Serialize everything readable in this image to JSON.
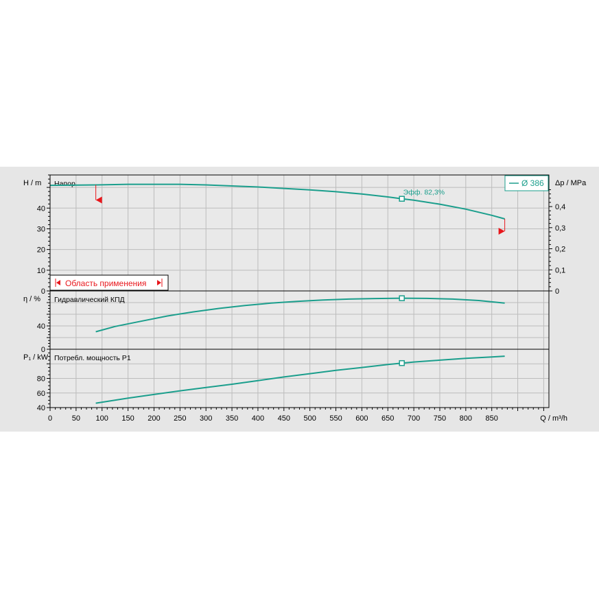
{
  "colors": {
    "background": "#e6e6e6",
    "plot_bg": "#e9e9e9",
    "grid": "#bcbcbc",
    "curve": "#1a9e8c",
    "marker_red": "#e8161b",
    "axis": "#000000"
  },
  "legend": {
    "label": "Ø 386",
    "placement": "top-right"
  },
  "range_label": "Область применения",
  "chart_data": [
    {
      "type": "line",
      "title": "Напор",
      "ylabel": "H / m",
      "y2label": "Δp / MPa",
      "xlim": [
        0,
        960
      ],
      "ylim": [
        0,
        56
      ],
      "y2lim": [
        0,
        0.55
      ],
      "yticks": [
        0,
        10,
        20,
        30,
        40
      ],
      "y2ticks": [
        "0",
        "0,1",
        "0,2",
        "0,3",
        "0,4"
      ],
      "y2tick_values": [
        0,
        0.1,
        0.2,
        0.3,
        0.4
      ],
      "grid": true,
      "series": [
        {
          "name": "Ø 386",
          "x": [
            0,
            90,
            150,
            200,
            250,
            300,
            350,
            400,
            450,
            500,
            550,
            600,
            650,
            680,
            700,
            750,
            800,
            850,
            875
          ],
          "y": [
            51,
            51.2,
            51.5,
            51.5,
            51.5,
            51.2,
            50.7,
            50.2,
            49.5,
            48.8,
            47.9,
            46.8,
            45.4,
            44.4,
            43.8,
            41.9,
            39.5,
            36.5,
            34.8
          ]
        }
      ],
      "operating_point": {
        "x": 677,
        "y": 44.5,
        "label": "Эфф.",
        "value_label": "82,3%"
      },
      "range_markers": {
        "min_x": 88,
        "max_x": 875
      }
    },
    {
      "type": "line",
      "title": "Гидравлический КПД",
      "ylabel": "η / %",
      "xlim": [
        0,
        960
      ],
      "ylim": [
        0,
        100
      ],
      "yticks": [
        0,
        40
      ],
      "grid": true,
      "series": [
        {
          "name": "",
          "x": [
            88,
            125,
            175,
            225,
            275,
            325,
            375,
            425,
            475,
            525,
            575,
            625,
            677,
            725,
            775,
            825,
            875
          ],
          "y": [
            30,
            39,
            48,
            57,
            64,
            70,
            75,
            79,
            82,
            84.5,
            86,
            87,
            87.5,
            87.2,
            86,
            83.5,
            79
          ]
        }
      ],
      "operating_point": {
        "x": 677,
        "y": 87.5
      }
    },
    {
      "type": "line",
      "title": "Потребл. мощность P1",
      "ylabel": "P₁ / kW",
      "xlim": [
        0,
        960
      ],
      "ylim": [
        40,
        120
      ],
      "yticks": [
        40,
        60,
        80
      ],
      "grid": true,
      "series": [
        {
          "name": "",
          "x": [
            88,
            150,
            200,
            250,
            300,
            350,
            400,
            450,
            500,
            550,
            600,
            650,
            677,
            700,
            750,
            800,
            850,
            875
          ],
          "y": [
            46,
            53,
            58,
            63,
            67.5,
            72,
            77,
            82,
            86.5,
            91,
            95,
            99,
            101,
            102.5,
            105,
            107.5,
            109.5,
            110.5
          ]
        }
      ],
      "operating_point": {
        "x": 677,
        "y": 101
      }
    }
  ],
  "xaxis": {
    "label": "Q / m³/h",
    "ticks": [
      0,
      50,
      100,
      150,
      200,
      250,
      300,
      350,
      400,
      450,
      500,
      550,
      600,
      650,
      700,
      750,
      800,
      850
    ]
  }
}
